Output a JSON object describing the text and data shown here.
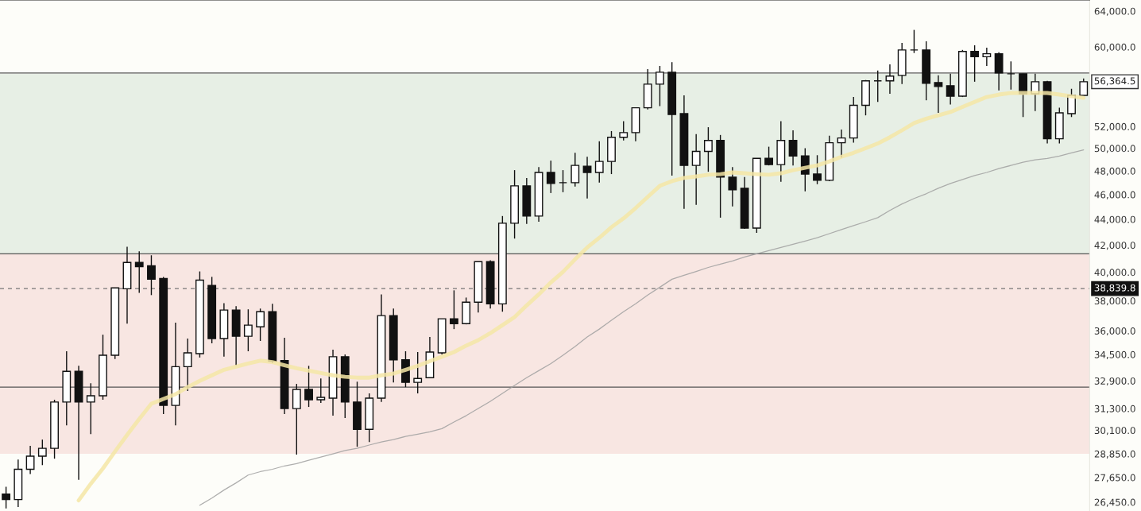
{
  "chart_data": {
    "type": "candlestick",
    "categories": [
      null,
      null,
      null,
      null,
      null,
      null,
      null,
      null,
      null,
      null,
      null,
      null,
      null,
      null,
      null,
      null,
      null,
      null,
      null,
      null,
      null,
      null,
      null,
      null,
      null,
      null,
      null,
      null,
      null,
      null,
      null,
      null,
      null,
      null,
      null,
      null,
      null,
      null,
      null,
      null,
      null,
      null,
      null,
      null,
      null,
      null,
      null,
      null,
      null,
      null,
      null,
      null,
      null,
      null,
      null,
      null,
      null,
      null,
      null,
      null,
      null,
      null,
      null,
      null,
      null,
      null,
      null,
      null,
      null,
      null,
      null,
      null,
      null,
      null,
      null,
      null,
      null,
      null,
      null,
      null,
      null,
      null,
      null,
      null,
      null,
      null,
      null,
      null,
      null,
      null
    ],
    "ohlc": [
      [
        26840,
        27190,
        26150,
        26570
      ],
      [
        26570,
        28560,
        26220,
        28060
      ],
      [
        28060,
        29270,
        27820,
        28730
      ],
      [
        28730,
        29600,
        28270,
        29140
      ],
      [
        29140,
        31800,
        28600,
        31670
      ],
      [
        31670,
        34700,
        30370,
        33470
      ],
      [
        33470,
        33800,
        27530,
        31670
      ],
      [
        31670,
        32760,
        29890,
        32030
      ],
      [
        32030,
        35750,
        31800,
        34450
      ],
      [
        34450,
        38890,
        34220,
        38890
      ],
      [
        38830,
        41880,
        36470,
        40710
      ],
      [
        40710,
        41530,
        38550,
        40410
      ],
      [
        40470,
        41240,
        38390,
        39500
      ],
      [
        39560,
        39670,
        30990,
        31480
      ],
      [
        31480,
        36530,
        30370,
        33750
      ],
      [
        33750,
        35500,
        32310,
        34600
      ],
      [
        34550,
        40060,
        34310,
        39440
      ],
      [
        39060,
        39670,
        35200,
        35500
      ],
      [
        35500,
        37840,
        34360,
        37370
      ],
      [
        37370,
        37630,
        33800,
        35650
      ],
      [
        35650,
        37420,
        34700,
        36370
      ],
      [
        36260,
        37470,
        35350,
        37260
      ],
      [
        37260,
        37790,
        33980,
        34080
      ],
      [
        34120,
        35550,
        30990,
        31300
      ],
      [
        31300,
        32720,
        28810,
        32400
      ],
      [
        32400,
        33800,
        31390,
        31800
      ],
      [
        31800,
        33040,
        31620,
        31940
      ],
      [
        31890,
        34800,
        30900,
        34360
      ],
      [
        34360,
        34500,
        30770,
        31670
      ],
      [
        31670,
        32850,
        29220,
        30150
      ],
      [
        30150,
        32170,
        29470,
        31890
      ],
      [
        31890,
        38440,
        31670,
        37000
      ],
      [
        37000,
        37470,
        32810,
        34170
      ],
      [
        34170,
        34700,
        32530,
        32810
      ],
      [
        32810,
        34650,
        32170,
        33040
      ],
      [
        33090,
        35600,
        33090,
        34650
      ],
      [
        34600,
        36790,
        34500,
        36790
      ],
      [
        36790,
        38720,
        36110,
        36470
      ],
      [
        36470,
        38220,
        36420,
        37900
      ],
      [
        37900,
        40770,
        37210,
        40770
      ],
      [
        40770,
        40880,
        37470,
        37790
      ],
      [
        37790,
        44260,
        37260,
        43690
      ],
      [
        43690,
        48070,
        42500,
        46730
      ],
      [
        46730,
        47400,
        43630,
        44260
      ],
      [
        44260,
        48340,
        43810,
        47870
      ],
      [
        47870,
        48900,
        46130,
        46930
      ],
      [
        47000,
        48070,
        46200,
        47000
      ],
      [
        47000,
        49590,
        46670,
        48480
      ],
      [
        48410,
        49240,
        45680,
        47870
      ],
      [
        47870,
        50640,
        47000,
        48830
      ],
      [
        48830,
        51570,
        47730,
        51000
      ],
      [
        51000,
        52490,
        50710,
        51430
      ],
      [
        51430,
        53780,
        50640,
        53780
      ],
      [
        53780,
        57660,
        53620,
        56120
      ],
      [
        56120,
        57980,
        53940,
        57330
      ],
      [
        57330,
        58380,
        47600,
        53130
      ],
      [
        53210,
        54990,
        44840,
        48480
      ],
      [
        48480,
        51290,
        45160,
        49720
      ],
      [
        49720,
        51930,
        47930,
        50710
      ],
      [
        50710,
        51210,
        44130,
        47470
      ],
      [
        47470,
        48340,
        45030,
        46400
      ],
      [
        46530,
        47470,
        43250,
        43310
      ],
      [
        43310,
        49100,
        42940,
        49100
      ],
      [
        49100,
        50140,
        48480,
        48550
      ],
      [
        48550,
        52490,
        47070,
        50710
      ],
      [
        50710,
        51640,
        48480,
        49310
      ],
      [
        49310,
        50000,
        46270,
        47730
      ],
      [
        47730,
        49380,
        46870,
        47200
      ],
      [
        47200,
        51140,
        47130,
        50500
      ],
      [
        50500,
        51710,
        49170,
        50930
      ],
      [
        50930,
        54830,
        50500,
        54020
      ],
      [
        54020,
        56530,
        53050,
        56450
      ],
      [
        56450,
        57500,
        54340,
        56450
      ],
      [
        56450,
        58140,
        55150,
        56930
      ],
      [
        57010,
        60440,
        56120,
        59680
      ],
      [
        59680,
        61870,
        59350,
        59680
      ],
      [
        59680,
        60620,
        54510,
        56200
      ],
      [
        56280,
        57010,
        53290,
        55880
      ],
      [
        55960,
        57170,
        54100,
        54910
      ],
      [
        54910,
        59680,
        54830,
        59520
      ],
      [
        59520,
        60180,
        56360,
        58950
      ],
      [
        58950,
        59920,
        57980,
        59270
      ],
      [
        59270,
        59430,
        55480,
        57250
      ],
      [
        57170,
        58460,
        55560,
        57170
      ],
      [
        57170,
        57170,
        52890,
        55150
      ],
      [
        55150,
        57170,
        53460,
        56360
      ],
      [
        56360,
        56450,
        50430,
        50860
      ],
      [
        50860,
        53780,
        50430,
        53290
      ],
      [
        53210,
        55640,
        52890,
        54990
      ],
      [
        54990,
        56690,
        54990,
        56360
      ]
    ],
    "series": [
      {
        "type": "line",
        "color": "#f5e6a6",
        "values": [
          null,
          null,
          null,
          null,
          null,
          null,
          26530,
          27340,
          28100,
          28970,
          29850,
          30720,
          31570,
          31850,
          32120,
          32530,
          32900,
          33230,
          33560,
          33750,
          33940,
          34120,
          34030,
          33840,
          33650,
          33510,
          33370,
          33230,
          33140,
          33090,
          33090,
          33230,
          33330,
          33560,
          33800,
          34080,
          34360,
          34650,
          35050,
          35400,
          35850,
          36370,
          36900,
          37680,
          38440,
          39280,
          40030,
          40940,
          41820,
          42560,
          43380,
          44070,
          44900,
          45810,
          46730,
          47130,
          47400,
          47530,
          47670,
          47730,
          47870,
          47800,
          47730,
          47670,
          47800,
          48070,
          48280,
          48480,
          48830,
          49240,
          49590,
          50000,
          50430,
          51000,
          51640,
          52320,
          52730,
          53050,
          53370,
          53860,
          54340,
          54830,
          55070,
          55230,
          55230,
          55230,
          55230,
          55070,
          54910,
          54750
        ]
      },
      {
        "type": "line",
        "color": "#a0a0a0",
        "values": [
          null,
          null,
          null,
          null,
          null,
          null,
          null,
          null,
          null,
          null,
          null,
          null,
          null,
          null,
          null,
          null,
          26300,
          26640,
          27030,
          27380,
          27770,
          27940,
          28060,
          28230,
          28350,
          28520,
          28680,
          28850,
          29020,
          29140,
          29310,
          29470,
          29600,
          29770,
          29890,
          30020,
          30190,
          30550,
          30900,
          31300,
          31710,
          32170,
          32630,
          33090,
          33510,
          33940,
          34450,
          35000,
          35600,
          36110,
          36690,
          37260,
          37790,
          38390,
          38940,
          39500,
          39780,
          40060,
          40350,
          40590,
          40820,
          41120,
          41350,
          41590,
          41820,
          42060,
          42310,
          42560,
          42880,
          43190,
          43500,
          43810,
          44130,
          44710,
          45230,
          45680,
          46070,
          46530,
          46930,
          47270,
          47600,
          47870,
          48210,
          48480,
          48760,
          48970,
          49100,
          49310,
          49590,
          49860
        ]
      }
    ],
    "log": true,
    "ylim": [
      26030,
      65290
    ],
    "yticks": [
      {
        "value": 64000,
        "label": "64,000.0"
      },
      {
        "value": 60000,
        "label": "60,000.0"
      },
      {
        "value": 52000,
        "label": "52,000.0"
      },
      {
        "value": 50000,
        "label": "50,000.0"
      },
      {
        "value": 48000,
        "label": "48,000.0"
      },
      {
        "value": 46000,
        "label": "46,000.0"
      },
      {
        "value": 44000,
        "label": "44,000.0"
      },
      {
        "value": 42000,
        "label": "42,000.0"
      },
      {
        "value": 40000,
        "label": "40,000.0"
      },
      {
        "value": 38000,
        "label": "38,000.0"
      },
      {
        "value": 36000,
        "label": "36,000.0"
      },
      {
        "value": 34500,
        "label": "34,500.0"
      },
      {
        "value": 32900,
        "label": "32,900.0"
      },
      {
        "value": 31300,
        "label": "31,300.0"
      },
      {
        "value": 30100,
        "label": "30,100.0"
      },
      {
        "value": 28850,
        "label": "28,850.0"
      },
      {
        "value": 27650,
        "label": "27,650.0"
      },
      {
        "value": 26450,
        "label": "26,450.0"
      }
    ],
    "bands": [
      {
        "axis": "y",
        "from": 28850,
        "to": 41350,
        "color": "#f8e6e2"
      },
      {
        "axis": "y",
        "from": 41350,
        "to": 57170,
        "color": "#e7efe5"
      }
    ],
    "ref_lines": [
      {
        "axis": "y",
        "value": 57250,
        "color": "#555555",
        "line_style": "solid"
      },
      {
        "axis": "y",
        "value": 41350,
        "color": "#555555",
        "line_style": "solid"
      },
      {
        "axis": "y",
        "value": 32530,
        "color": "#555555",
        "line_style": "solid"
      },
      {
        "axis": "y",
        "value": 38839.8,
        "label": "38,839.8",
        "color": "#777777",
        "line_style": "dashed"
      }
    ],
    "annotations": [
      "56,364.5"
    ],
    "grid": false,
    "tick_labels": "y"
  }
}
